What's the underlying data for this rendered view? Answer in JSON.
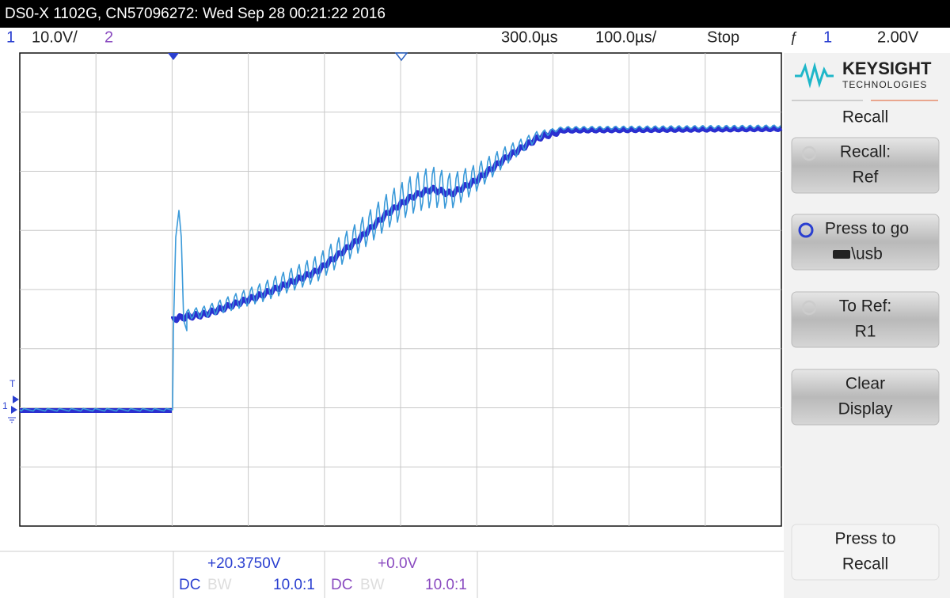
{
  "header": {
    "title": "DS0-X 1102G, CN57096272: Wed Sep 28 00:21:22 2016"
  },
  "status": {
    "ch1": "1",
    "ch1_scale": "10.0V/",
    "ch2": "2",
    "delay": "300.0µs",
    "timebase": "100.0µs/",
    "run_state": "Stop",
    "trigger_source": "1",
    "trigger_level": "2.00V"
  },
  "markers": {
    "trigger": "T",
    "ch1": "1"
  },
  "panel": {
    "brand": "KEYSIGHT",
    "brand_sub": "TECHNOLOGIES",
    "menu_title": "Recall",
    "buttons": [
      {
        "lines": [
          "Recall:",
          "Ref"
        ]
      },
      {
        "lines": [
          "Press to go",
          "\\usb"
        ]
      },
      {
        "lines": [
          "To Ref:",
          "R1"
        ]
      },
      {
        "lines": [
          "Clear",
          "Display"
        ]
      },
      {
        "lines": [
          "Press to",
          "Recall"
        ]
      }
    ]
  },
  "footer": {
    "ch1": {
      "offset": "+20.3750V",
      "coupling": "DC",
      "bw": "BW",
      "probe": "10.0:1"
    },
    "ch2": {
      "offset": "+0.0V",
      "coupling": "DC",
      "bw": "BW",
      "probe": "10.0:1"
    }
  }
}
